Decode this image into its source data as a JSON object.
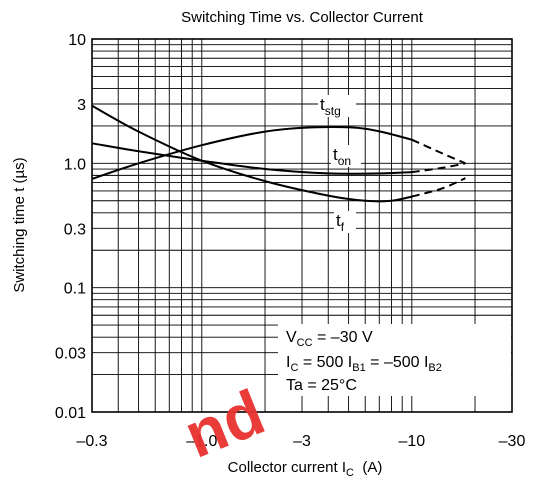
{
  "chart_data": {
    "type": "line",
    "title": "Switching Time vs. Collector Current",
    "xlabel": {
      "main": "Collector current  I",
      "sub": "C",
      "unit": "  (A)"
    },
    "ylabel": {
      "main": "Switching time  t  (µs)"
    },
    "x_scale": "log",
    "y_scale": "log",
    "x_axis_label_meaning": "absolute collector current (A); tick labels are negative",
    "xlim": [
      0.3,
      30
    ],
    "ylim": [
      0.01,
      10
    ],
    "x_ticks": [
      {
        "value": 0.3,
        "label": "–0.3"
      },
      {
        "value": 1.0,
        "label": "–1.0"
      },
      {
        "value": 3,
        "label": "–3"
      },
      {
        "value": 10,
        "label": "–10"
      },
      {
        "value": 30,
        "label": "–30"
      }
    ],
    "y_ticks": [
      {
        "value": 10,
        "label": "10"
      },
      {
        "value": 3,
        "label": "3"
      },
      {
        "value": 1.0,
        "label": "1.0"
      },
      {
        "value": 0.3,
        "label": "0.3"
      },
      {
        "value": 0.1,
        "label": "0.1"
      },
      {
        "value": 0.03,
        "label": "0.03"
      },
      {
        "value": 0.01,
        "label": "0.01"
      }
    ],
    "grid": true,
    "series": [
      {
        "name": "t_stg",
        "label_main": "t",
        "label_sub": "stg",
        "solid": [
          [
            0.3,
            0.75
          ],
          [
            0.5,
            1.0
          ],
          [
            1.0,
            1.4
          ],
          [
            2.0,
            1.8
          ],
          [
            3.5,
            1.95
          ],
          [
            6.0,
            1.9
          ],
          [
            10,
            1.55
          ]
        ],
        "dashed": [
          [
            10,
            1.55
          ],
          [
            14,
            1.2
          ],
          [
            18,
            1.0
          ]
        ]
      },
      {
        "name": "t_on",
        "label_main": "t",
        "label_sub": "on",
        "solid": [
          [
            0.3,
            1.45
          ],
          [
            0.5,
            1.25
          ],
          [
            1.0,
            1.05
          ],
          [
            2.0,
            0.9
          ],
          [
            4.0,
            0.83
          ],
          [
            7.0,
            0.83
          ],
          [
            10,
            0.85
          ]
        ],
        "dashed": [
          [
            10,
            0.85
          ],
          [
            14,
            0.92
          ],
          [
            18,
            1.0
          ]
        ]
      },
      {
        "name": "t_f",
        "label_main": "t",
        "label_sub": "f",
        "solid": [
          [
            0.3,
            2.9
          ],
          [
            0.5,
            1.8
          ],
          [
            1.0,
            1.05
          ],
          [
            2.0,
            0.72
          ],
          [
            4.0,
            0.55
          ],
          [
            6.0,
            0.5
          ],
          [
            8.0,
            0.5
          ],
          [
            10,
            0.54
          ]
        ],
        "dashed": [
          [
            10,
            0.54
          ],
          [
            14,
            0.63
          ],
          [
            18,
            0.76
          ]
        ]
      }
    ],
    "conditions": [
      {
        "main": "V",
        "sub": "CC",
        "rest": " = –30 V"
      },
      {
        "main": "I",
        "sub": "C",
        "rest": " = 500 I",
        "sub2": "B1",
        "rest2": " = –500 I",
        "sub3": "B2"
      },
      {
        "main": "Ta = 25°C"
      }
    ]
  },
  "watermark": {
    "text": "nd",
    "color": "#e8322f"
  },
  "colors": {
    "line": "#000000",
    "grid": "#000000",
    "background": "#ffffff"
  }
}
